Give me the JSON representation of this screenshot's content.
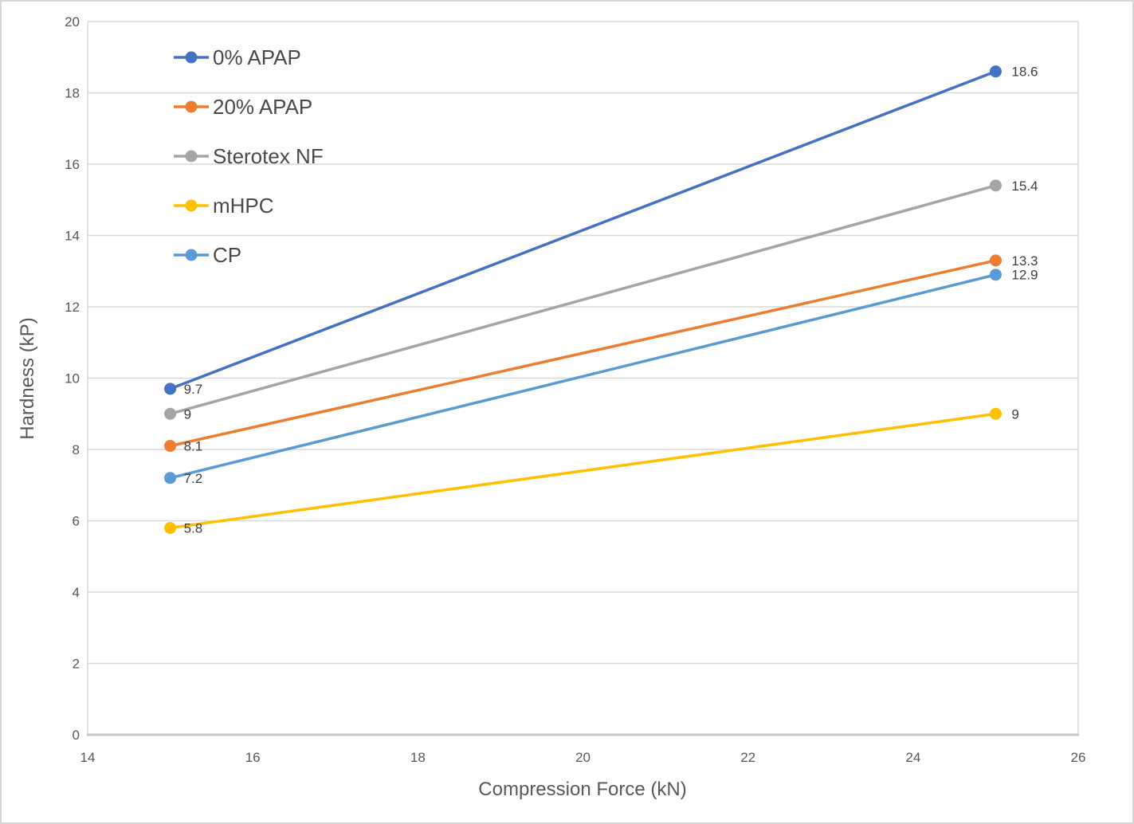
{
  "chart_data": {
    "type": "line",
    "x": [
      15,
      25
    ],
    "series": [
      {
        "name": "0% APAP",
        "values": [
          9.7,
          18.6
        ],
        "labels": [
          "9.7",
          "18.6"
        ],
        "color": "#4472C4"
      },
      {
        "name": "20% APAP",
        "values": [
          8.1,
          13.3
        ],
        "labels": [
          "8.1",
          "13.3"
        ],
        "color": "#ED7D31"
      },
      {
        "name": "Sterotex NF",
        "values": [
          9,
          15.4
        ],
        "labels": [
          "9",
          "15.4"
        ],
        "color": "#A5A5A5"
      },
      {
        "name": "mHPC",
        "values": [
          5.8,
          9
        ],
        "labels": [
          "5.8",
          "9"
        ],
        "color": "#FFC000"
      },
      {
        "name": "CP",
        "values": [
          7.2,
          12.9
        ],
        "labels": [
          "7.2",
          "12.9"
        ],
        "color": "#5B9BD5"
      }
    ],
    "title": "",
    "xlabel": "Compression Force (kN)",
    "ylabel": "Hardness (kP)",
    "xlim": [
      14,
      26
    ],
    "ylim": [
      0,
      20
    ],
    "x_ticks": [
      14,
      16,
      18,
      20,
      22,
      24,
      26
    ],
    "y_ticks": [
      0,
      2,
      4,
      6,
      8,
      10,
      12,
      14,
      16,
      18,
      20
    ],
    "grid": "horizontal",
    "legend_position": "top-left-inside",
    "grid_color": "#D9D9D9",
    "axis_line_color": "#C8C8C8"
  }
}
